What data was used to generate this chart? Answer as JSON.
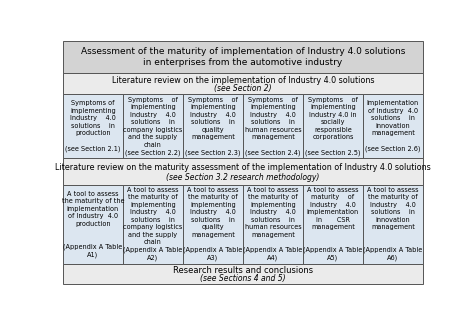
{
  "title": "Assessment of the maturity of implementation of Industry 4.0 solutions\nin enterprises from the automotive industry",
  "section2_header_line1": "Literature review on the implementation of Industry 4.0 solutions",
  "section2_header_line2": "(see Section 2)",
  "section3_header_line1": "Literature review on the maturity assessment of the implementation of Industry 4.0 solutions",
  "section3_header_line2": "(see Section 3.2 research methodology)",
  "footer_line1": "Research results and conclusions",
  "footer_line2": "(see Sections 4 and 5)",
  "row1_cells": [
    "Symptoms of\nimplementing\nIndustry    4.0\nsolutions    in\nproduction\n\n(see Section 2.1)",
    "Symptoms    of\nimplementing\nIndustry    4.0\nsolutions    in\ncompany logistics\nand the supply\nchain\n(see Section 2.2)",
    "Symptoms    of\nimplementing\nIndustry    4.0\nsolutions    in\nquality\nmanagement\n\n(see Section 2.3)",
    "Symptoms    of\nimplementing\nIndustry    4.0\nsolutions    in\nhuman resources\nmanagement\n\n(see Section 2.4)",
    "Symptoms    of\nimplementing\nIndustry 4.0 in\nsocially\nresponsible\ncorporations\n\n(see Section 2.5)",
    "Implementation\nof Industry  4.0\nsolutions    in\ninnovation\nmanagement\n\n(see Section 2.6)"
  ],
  "row2_cells": [
    "A tool to assess\nthe maturity of the\nimplementation\nof Industry  4.0\nproduction\n\n\n(Appendix A Table\nA1)",
    "A tool to assess\nthe maturity of\nimplementing\nIndustry    4.0\nsolutions    in\ncompany logistics\nand the supply\nchain\n(Appendix A Table\nA2)",
    "A tool to assess\nthe maturity of\nimplementing\nIndustry    4.0\nsolutions    in\nquality\nmanagement\n\n(Appendix A Table\nA3)",
    "A tool to assess\nthe maturity of\nimplementing\nIndustry    4.0\nsolutions    in\nhuman resources\nmanagement\n\n(Appendix A Table\nA4)",
    "A tool to assess\nmaturity    of\nIndustry    4.0\nimplementation\nin       CSR\nmanagement\n\n\n(Appendix A Table\nA5)",
    "A tool to assess\nthe maturity of\nIndustry    4.0\nsolutions    in\ninnovation\nmanagement\n\n\n(Appendix A Table\nA6)"
  ],
  "bg_header": "#d3d3d3",
  "bg_subheader": "#ebebeb",
  "bg_cell": "#dce6f0",
  "border_color": "#555555",
  "fig_bg": "#ffffff",
  "title_fontsize": 6.5,
  "sec_header_fontsize": 5.8,
  "sec_italic_fontsize": 5.5,
  "cell_fontsize": 4.7,
  "footer_fontsize": 6.0,
  "footer_italic_fontsize": 5.5
}
